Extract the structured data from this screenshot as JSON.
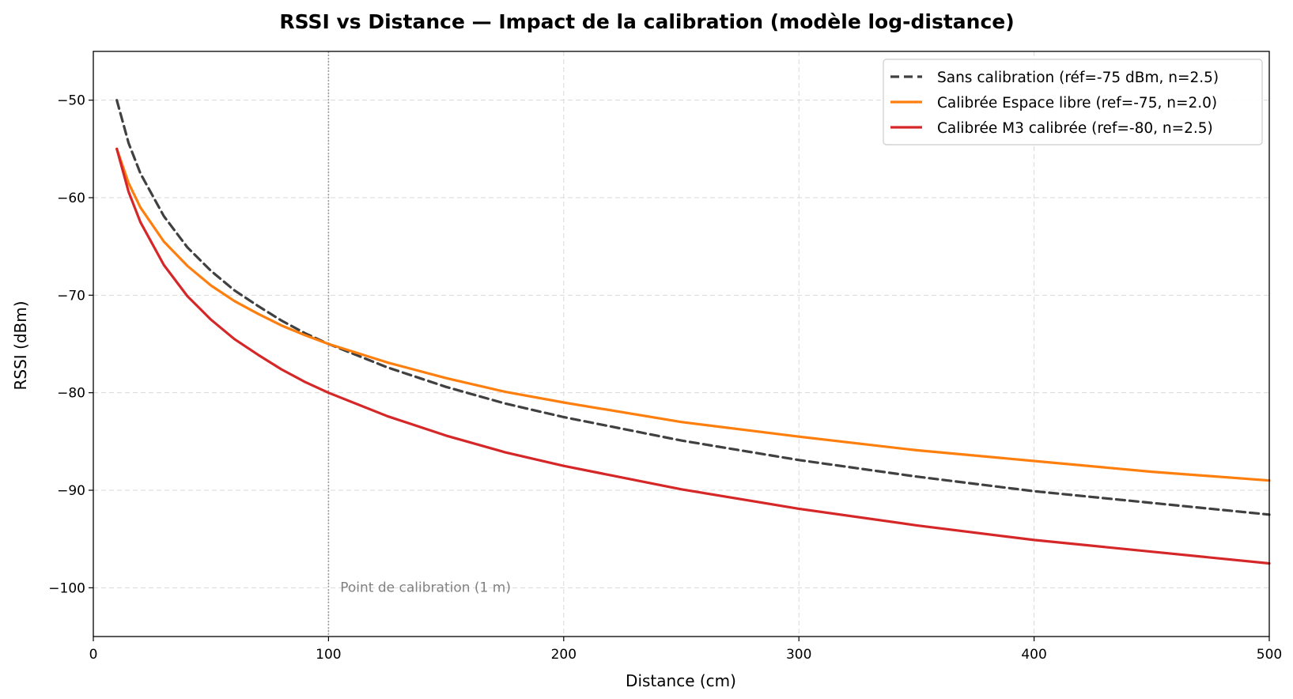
{
  "chart_data": {
    "type": "line",
    "title": "RSSI vs Distance — Impact de la calibration (modèle log-distance)",
    "xlabel": "Distance (cm)",
    "ylabel": "RSSI (dBm)",
    "xlim": [
      0,
      500
    ],
    "ylim": [
      -105,
      -45
    ],
    "xticks": [
      0,
      100,
      200,
      300,
      400,
      500
    ],
    "yticks": [
      -50,
      -60,
      -70,
      -80,
      -90,
      -100
    ],
    "xtick_labels": [
      "0",
      "100",
      "200",
      "300",
      "400",
      "500"
    ],
    "ytick_labels": [
      "−50",
      "−60",
      "−70",
      "−80",
      "−90",
      "−100"
    ],
    "grid": true,
    "legend_position": "top-right",
    "x": [
      10,
      15,
      20,
      30,
      40,
      50,
      60,
      70,
      80,
      90,
      100,
      125,
      150,
      175,
      200,
      250,
      300,
      350,
      400,
      450,
      500
    ],
    "series": [
      {
        "name": "Sans calibration (réf=-75 dBm, n=2.5)",
        "color": "#404040",
        "style": "dashed",
        "values": [
          -50.0,
          -54.4,
          -57.5,
          -61.9,
          -65.1,
          -67.5,
          -69.5,
          -71.1,
          -72.6,
          -73.9,
          -75.0,
          -77.4,
          -79.4,
          -81.1,
          -82.5,
          -84.9,
          -86.9,
          -88.6,
          -90.1,
          -91.3,
          -92.5
        ]
      },
      {
        "name": "Calibrée Espace libre (ref=-75, n=2.0)",
        "color": "#ff7f0e",
        "style": "solid",
        "values": [
          -55.0,
          -58.5,
          -61.0,
          -64.5,
          -67.0,
          -69.0,
          -70.6,
          -71.9,
          -73.1,
          -74.1,
          -75.0,
          -76.9,
          -78.5,
          -79.9,
          -81.0,
          -83.0,
          -84.5,
          -85.9,
          -87.0,
          -88.1,
          -89.0
        ]
      },
      {
        "name": "Calibrée M3 calibrée (ref=-80, n=2.5)",
        "color": "#d62728",
        "style": "solid",
        "values": [
          -55.0,
          -59.4,
          -62.5,
          -66.9,
          -70.1,
          -72.5,
          -74.5,
          -76.1,
          -77.6,
          -78.9,
          -80.0,
          -82.4,
          -84.4,
          -86.1,
          -87.5,
          -89.9,
          -91.9,
          -93.6,
          -95.1,
          -96.3,
          -97.5
        ]
      }
    ],
    "annotations": [
      {
        "text": "Point de calibration (1 m)",
        "x": 105,
        "y": -100,
        "color": "#808080"
      }
    ],
    "vlines": [
      {
        "x": 100,
        "color": "#a0a0a0",
        "style": "dotted"
      }
    ]
  }
}
